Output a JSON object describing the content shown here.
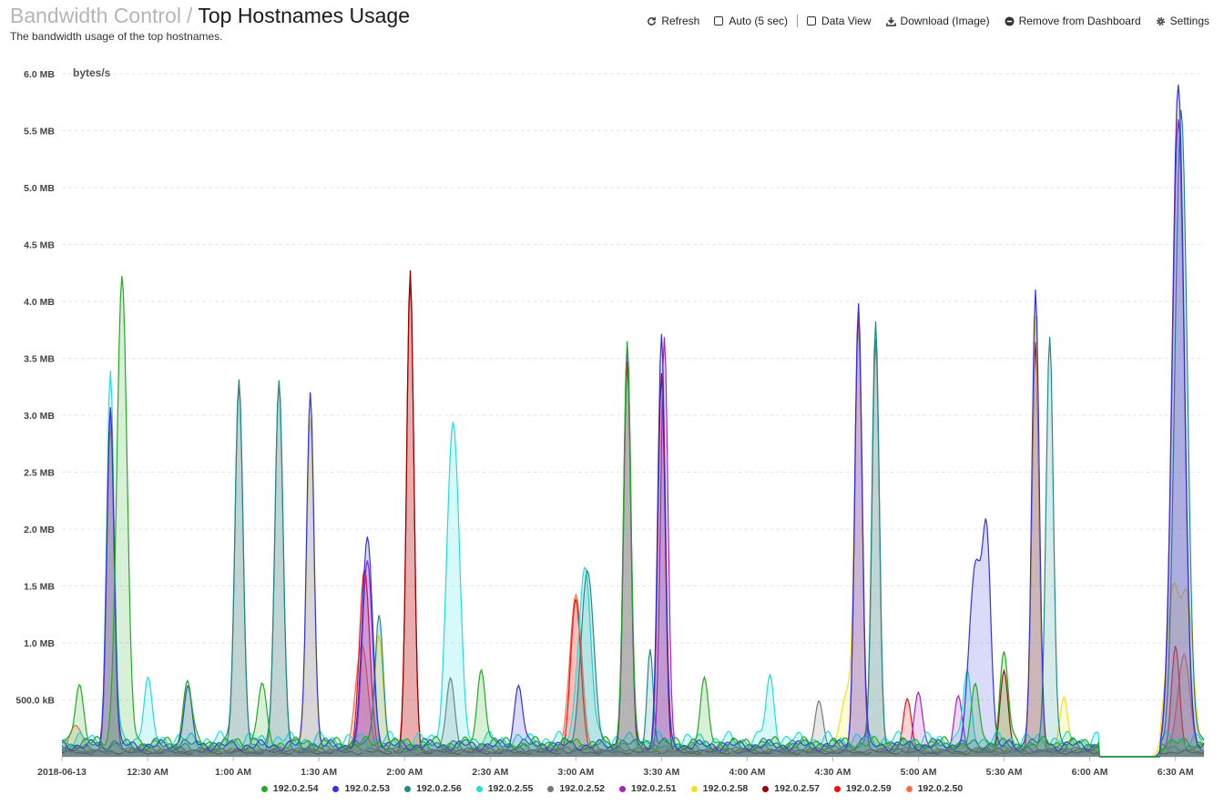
{
  "header": {
    "parent": "Bandwidth Control",
    "separator": "/",
    "title": "Top Hostnames Usage",
    "subtitle": "The bandwidth usage of the top hostnames."
  },
  "toolbar": {
    "refresh": "Refresh",
    "auto": "Auto (5 sec)",
    "data_view": "Data View",
    "download": "Download (Image)",
    "remove": "Remove from Dashboard",
    "settings": "Settings"
  },
  "chart_data": {
    "type": "area",
    "ylabel": "bytes/s",
    "y_range": [
      0,
      6000000
    ],
    "y_ticks": [
      {
        "value": 500000,
        "label": "500.0 kB"
      },
      {
        "value": 1000000,
        "label": "1.0 MB"
      },
      {
        "value": 1500000,
        "label": "1.5 MB"
      },
      {
        "value": 2000000,
        "label": "2.0 MB"
      },
      {
        "value": 2500000,
        "label": "2.5 MB"
      },
      {
        "value": 3000000,
        "label": "3.0 MB"
      },
      {
        "value": 3500000,
        "label": "3.5 MB"
      },
      {
        "value": 4000000,
        "label": "4.0 MB"
      },
      {
        "value": 4500000,
        "label": "4.5 MB"
      },
      {
        "value": 5000000,
        "label": "5.0 MB"
      },
      {
        "value": 5500000,
        "label": "5.5 MB"
      },
      {
        "value": 6000000,
        "label": "6.0 MB"
      }
    ],
    "x_range": [
      "2018-06-13 00:00",
      "2018-06-13 06:40"
    ],
    "x_ticks": [
      {
        "time": "2018-06-13 00:00",
        "label": "2018-06-13"
      },
      {
        "time": "2018-06-13 00:30",
        "label": "12:30 AM"
      },
      {
        "time": "2018-06-13 01:00",
        "label": "1:00 AM"
      },
      {
        "time": "2018-06-13 01:30",
        "label": "1:30 AM"
      },
      {
        "time": "2018-06-13 02:00",
        "label": "2:00 AM"
      },
      {
        "time": "2018-06-13 02:30",
        "label": "2:30 AM"
      },
      {
        "time": "2018-06-13 03:00",
        "label": "3:00 AM"
      },
      {
        "time": "2018-06-13 03:30",
        "label": "3:30 AM"
      },
      {
        "time": "2018-06-13 04:00",
        "label": "4:00 AM"
      },
      {
        "time": "2018-06-13 04:30",
        "label": "4:30 AM"
      },
      {
        "time": "2018-06-13 05:00",
        "label": "5:00 AM"
      },
      {
        "time": "2018-06-13 05:30",
        "label": "5:30 AM"
      },
      {
        "time": "2018-06-13 06:00",
        "label": "6:00 AM"
      },
      {
        "time": "2018-06-13 06:30",
        "label": "6:30 AM"
      }
    ],
    "grid": true,
    "legend_position": "bottom-center",
    "series": [
      {
        "name": "192.0.2.54",
        "color": "#22aa22",
        "baseline": 120000,
        "peaks": [
          {
            "t": "00:06",
            "v": 550000,
            "w": 2
          },
          {
            "t": "00:21",
            "v": 4100000,
            "w": 2.5
          },
          {
            "t": "00:44",
            "v": 580000,
            "w": 2
          },
          {
            "t": "01:10",
            "v": 520000,
            "w": 2
          },
          {
            "t": "02:27",
            "v": 660000,
            "w": 2
          },
          {
            "t": "03:18",
            "v": 3570000,
            "w": 1.8
          },
          {
            "t": "03:45",
            "v": 520000,
            "w": 2
          },
          {
            "t": "05:20",
            "v": 480000,
            "w": 2
          },
          {
            "t": "05:30",
            "v": 780000,
            "w": 2
          }
        ]
      },
      {
        "name": "192.0.2.53",
        "color": "#3333dd",
        "baseline": 100000,
        "peaks": [
          {
            "t": "00:17",
            "v": 3010000,
            "w": 1.8
          },
          {
            "t": "00:44",
            "v": 500000,
            "w": 2
          },
          {
            "t": "01:27",
            "v": 3150000,
            "w": 1.8
          },
          {
            "t": "01:47",
            "v": 1840000,
            "w": 2.5
          },
          {
            "t": "02:40",
            "v": 550000,
            "w": 2
          },
          {
            "t": "03:18",
            "v": 3480000,
            "w": 1.8
          },
          {
            "t": "03:30",
            "v": 3620000,
            "w": 1.8
          },
          {
            "t": "04:39",
            "v": 3910000,
            "w": 1.8
          },
          {
            "t": "05:20",
            "v": 1590000,
            "w": 3
          },
          {
            "t": "05:24",
            "v": 1720000,
            "w": 2
          },
          {
            "t": "05:41",
            "v": 3970000,
            "w": 1.8
          },
          {
            "t": "06:31",
            "v": 5760000,
            "w": 3
          }
        ]
      },
      {
        "name": "192.0.2.56",
        "color": "#1f8a8a",
        "baseline": 110000,
        "peaks": [
          {
            "t": "01:02",
            "v": 3210000,
            "w": 2
          },
          {
            "t": "01:16",
            "v": 3220000,
            "w": 2
          },
          {
            "t": "01:51",
            "v": 1150000,
            "w": 2
          },
          {
            "t": "03:04",
            "v": 1550000,
            "w": 3
          },
          {
            "t": "03:26",
            "v": 830000,
            "w": 1.5
          },
          {
            "t": "04:45",
            "v": 3690000,
            "w": 1.8
          },
          {
            "t": "05:46",
            "v": 3610000,
            "w": 1.8
          },
          {
            "t": "06:32",
            "v": 5600000,
            "w": 3
          }
        ]
      },
      {
        "name": "192.0.2.55",
        "color": "#22dddd",
        "baseline": 150000,
        "peaks": [
          {
            "t": "00:17",
            "v": 3230000,
            "w": 1.8
          },
          {
            "t": "00:30",
            "v": 500000,
            "w": 2
          },
          {
            "t": "02:17",
            "v": 2800000,
            "w": 3
          },
          {
            "t": "03:03",
            "v": 1500000,
            "w": 3
          },
          {
            "t": "04:08",
            "v": 540000,
            "w": 2
          },
          {
            "t": "05:17",
            "v": 550000,
            "w": 2
          }
        ]
      },
      {
        "name": "192.0.2.52",
        "color": "#777777",
        "baseline": 80000,
        "peaks": [
          {
            "t": "01:02",
            "v": 3200000,
            "w": 2
          },
          {
            "t": "01:16",
            "v": 3210000,
            "w": 2
          },
          {
            "t": "02:16",
            "v": 600000,
            "w": 2
          },
          {
            "t": "04:45",
            "v": 3600000,
            "w": 1.8
          },
          {
            "t": "04:25",
            "v": 400000,
            "w": 2
          }
        ]
      },
      {
        "name": "192.0.2.51",
        "color": "#aa22bb",
        "baseline": 60000,
        "peaks": [
          {
            "t": "00:17",
            "v": 2980000,
            "w": 1.8
          },
          {
            "t": "01:47",
            "v": 1680000,
            "w": 2.5
          },
          {
            "t": "03:31",
            "v": 3640000,
            "w": 1.8
          },
          {
            "t": "04:39",
            "v": 3800000,
            "w": 1.8
          },
          {
            "t": "05:00",
            "v": 500000,
            "w": 2
          },
          {
            "t": "05:14",
            "v": 450000,
            "w": 2
          },
          {
            "t": "06:31",
            "v": 5560000,
            "w": 3
          }
        ]
      },
      {
        "name": "192.0.2.58",
        "color": "#f2e11a",
        "baseline": 70000,
        "peaks": [
          {
            "t": "00:17",
            "v": 2930000,
            "w": 1.8
          },
          {
            "t": "01:27",
            "v": 2900000,
            "w": 1.8
          },
          {
            "t": "01:51",
            "v": 1000000,
            "w": 2
          },
          {
            "t": "04:39",
            "v": 3640000,
            "w": 1.8
          },
          {
            "t": "04:35",
            "v": 500000,
            "w": 3
          },
          {
            "t": "05:41",
            "v": 3800000,
            "w": 1.8
          },
          {
            "t": "05:51",
            "v": 440000,
            "w": 2
          },
          {
            "t": "06:29",
            "v": 1370000,
            "w": 3
          },
          {
            "t": "06:34",
            "v": 1300000,
            "w": 3
          }
        ]
      },
      {
        "name": "192.0.2.57",
        "color": "#990000",
        "baseline": 40000,
        "peaks": [
          {
            "t": "02:02",
            "v": 4220000,
            "w": 1.8
          },
          {
            "t": "03:30",
            "v": 3330000,
            "w": 1.8
          },
          {
            "t": "05:30",
            "v": 720000,
            "w": 2
          },
          {
            "t": "05:41",
            "v": 3620000,
            "w": 1.8
          }
        ]
      },
      {
        "name": "192.0.2.59",
        "color": "#ee1111",
        "baseline": 50000,
        "peaks": [
          {
            "t": "00:17",
            "v": 2900000,
            "w": 1.8
          },
          {
            "t": "01:46",
            "v": 1600000,
            "w": 2.5
          },
          {
            "t": "02:02",
            "v": 4150000,
            "w": 1.8
          },
          {
            "t": "03:18",
            "v": 3420000,
            "w": 1.8
          },
          {
            "t": "03:00",
            "v": 1330000,
            "w": 2.5
          },
          {
            "t": "04:56",
            "v": 450000,
            "w": 2
          },
          {
            "t": "06:30",
            "v": 920000,
            "w": 2
          }
        ]
      },
      {
        "name": "192.0.2.50",
        "color": "#ff6a44",
        "baseline": 40000,
        "peaks": [
          {
            "t": "00:05",
            "v": 250000,
            "w": 3
          },
          {
            "t": "01:45",
            "v": 950000,
            "w": 3
          },
          {
            "t": "03:00",
            "v": 1380000,
            "w": 3
          },
          {
            "t": "06:33",
            "v": 850000,
            "w": 3
          }
        ]
      }
    ]
  }
}
